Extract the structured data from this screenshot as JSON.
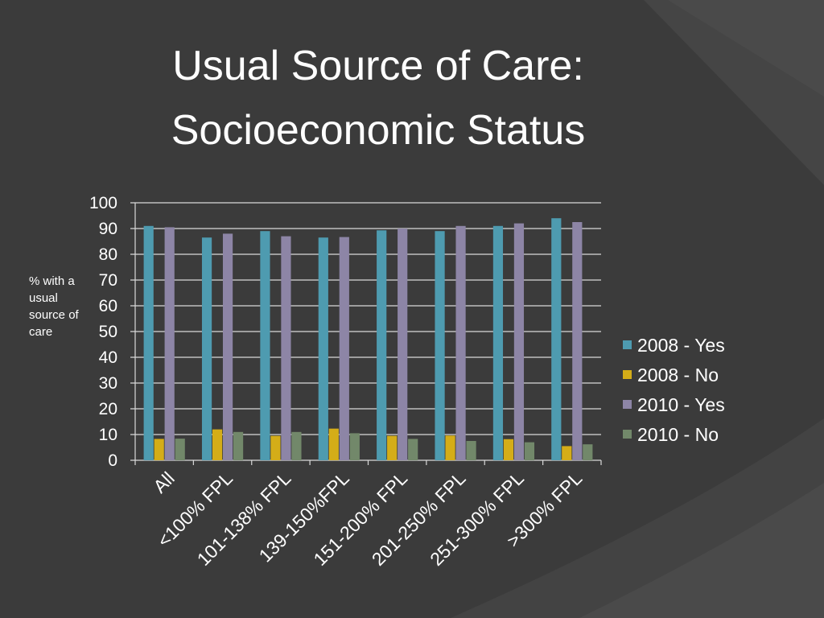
{
  "slide": {
    "title_line1": "Usual Source of Care:",
    "title_line2": "Socioeconomic Status"
  },
  "colors": {
    "background": "#3b3b3b",
    "gridline": "#d9d9d9",
    "text": "#ffffff"
  },
  "chart_data": {
    "type": "bar",
    "title": "",
    "xlabel": "",
    "ylabel": "% with a usual source of care",
    "ylim": [
      0,
      100
    ],
    "yticks": [
      0,
      10,
      20,
      30,
      40,
      50,
      60,
      70,
      80,
      90,
      100
    ],
    "grid": true,
    "legend_position": "right",
    "categories": [
      "All",
      "<100% FPL",
      "101-138% FPL",
      "139-150%FPL",
      "151-200% FPL",
      "201-250% FPL",
      "251-300% FPL",
      ">300% FPL"
    ],
    "series": [
      {
        "name": "2008 - Yes",
        "color": "#4e9bb0",
        "values": [
          91,
          86.5,
          89,
          86.5,
          89.3,
          89,
          91,
          94
        ]
      },
      {
        "name": "2008 - No",
        "color": "#d4ad18",
        "values": [
          8.3,
          12,
          9.5,
          12.3,
          9.5,
          9.6,
          8.2,
          5.5
        ]
      },
      {
        "name": "2010 - Yes",
        "color": "#8d85a6",
        "values": [
          90.5,
          88,
          87,
          86.7,
          90,
          91,
          92,
          92.5
        ]
      },
      {
        "name": "2010 - No",
        "color": "#72886a",
        "values": [
          8.4,
          11,
          11,
          10.5,
          8.3,
          7.5,
          7,
          6.2
        ]
      }
    ]
  }
}
